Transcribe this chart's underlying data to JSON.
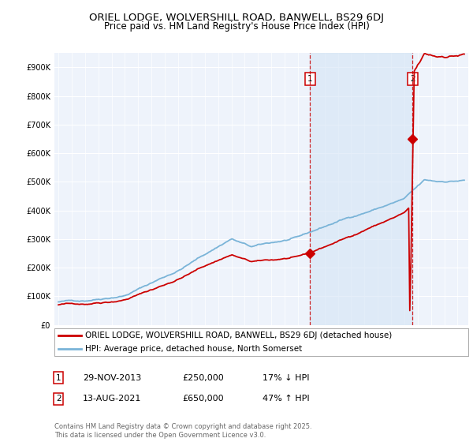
{
  "title": "ORIEL LODGE, WOLVERSHILL ROAD, BANWELL, BS29 6DJ",
  "subtitle": "Price paid vs. HM Land Registry's House Price Index (HPI)",
  "ytick_values": [
    0,
    100000,
    200000,
    300000,
    400000,
    500000,
    600000,
    700000,
    800000,
    900000
  ],
  "ylim": [
    0,
    950000
  ],
  "xlim_start": 1994.7,
  "xlim_end": 2025.8,
  "sale1_date": 2013.91,
  "sale1_price": 250000,
  "sale1_label": "1",
  "sale1_text": "29-NOV-2013",
  "sale1_price_text": "£250,000",
  "sale1_hpi_text": "17% ↓ HPI",
  "sale2_date": 2021.62,
  "sale2_price": 650000,
  "sale2_label": "2",
  "sale2_text": "13-AUG-2021",
  "sale2_price_text": "£650,000",
  "sale2_hpi_text": "47% ↑ HPI",
  "hpi_color": "#7ab4d8",
  "price_color": "#cc0000",
  "vline_color": "#cc0000",
  "background_color": "#ffffff",
  "plot_bg_color": "#eef3fb",
  "shade_color": "#d4e4f5",
  "grid_color": "#ffffff",
  "legend_label_price": "ORIEL LODGE, WOLVERSHILL ROAD, BANWELL, BS29 6DJ (detached house)",
  "legend_label_hpi": "HPI: Average price, detached house, North Somerset",
  "footer_text": "Contains HM Land Registry data © Crown copyright and database right 2025.\nThis data is licensed under the Open Government Licence v3.0.",
  "title_fontsize": 9.5,
  "subtitle_fontsize": 8.5,
  "tick_fontsize": 7,
  "legend_fontsize": 7.5,
  "footer_fontsize": 6
}
